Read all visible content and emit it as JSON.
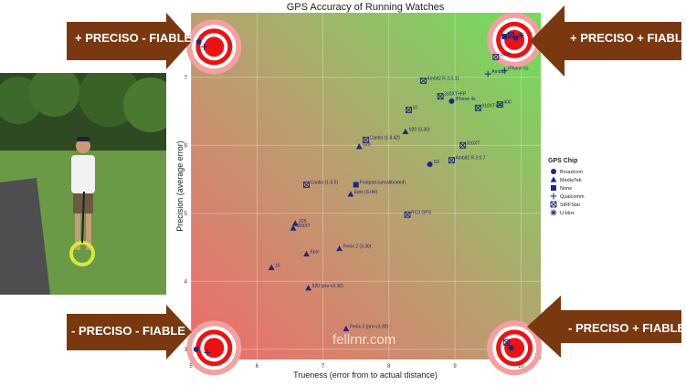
{
  "chart_data": {
    "type": "scatter",
    "title": "GPS Accuracy of Running Watches",
    "xlabel": "Trueness (error from to actual distance)",
    "ylabel": "Precision (average error)",
    "xlim": [
      5.0,
      10.3
    ],
    "ylim": [
      2.85,
      7.95
    ],
    "xticks": [
      "5",
      "6",
      "7",
      "8",
      "9",
      "10"
    ],
    "xtick_values": [
      5,
      6,
      7,
      8,
      9,
      10
    ],
    "yticks": [
      "3",
      "4",
      "5",
      "6",
      "7"
    ],
    "ytick_values": [
      3,
      4,
      5,
      6,
      7
    ],
    "legend": {
      "title": "GPS Chip",
      "items": [
        {
          "label": "Broadcom",
          "shape": "circle"
        },
        {
          "label": "MediaTek",
          "shape": "triangle"
        },
        {
          "label": "None",
          "shape": "square"
        },
        {
          "label": "Qualcomm",
          "shape": "plus"
        },
        {
          "label": "SiRFStar",
          "shape": "boxx"
        },
        {
          "label": "U-blox",
          "shape": "star"
        }
      ]
    },
    "points": [
      {
        "label": "Fenix 2 (pre-v3.30)",
        "x": 7.35,
        "y": 3.3,
        "chip": "triangle"
      },
      {
        "label": "520 (pre-v3.30)",
        "x": 6.78,
        "y": 3.9,
        "chip": "triangle"
      },
      {
        "label": "15",
        "x": 6.22,
        "y": 4.2,
        "chip": "triangle"
      },
      {
        "label": "Epix",
        "x": 6.75,
        "y": 4.4,
        "chip": "triangle"
      },
      {
        "label": "Fenix 2 (3.30)",
        "x": 7.25,
        "y": 4.48,
        "chip": "triangle"
      },
      {
        "label": "920XT",
        "x": 6.55,
        "y": 4.78,
        "chip": "triangle"
      },
      {
        "label": "225",
        "x": 6.58,
        "y": 4.85,
        "chip": "triangle"
      },
      {
        "label": "Epix (S+W)",
        "x": 7.42,
        "y": 5.28,
        "chip": "triangle"
      },
      {
        "label": "Cardio (1.8.5)",
        "x": 6.75,
        "y": 5.42,
        "chip": "boxx"
      },
      {
        "label": "Footpod (uncalibrated)",
        "x": 7.5,
        "y": 5.42,
        "chip": "square"
      },
      {
        "label": "RC3 GPS",
        "x": 8.28,
        "y": 4.98,
        "chip": "boxx"
      },
      {
        "label": "620",
        "x": 7.55,
        "y": 5.98,
        "chip": "triangle"
      },
      {
        "label": "Cardio (1.8.42)",
        "x": 7.65,
        "y": 6.08,
        "chip": "boxx"
      },
      {
        "label": "920 (3.30)",
        "x": 8.25,
        "y": 6.2,
        "chip": "triangle"
      },
      {
        "label": "10",
        "x": 8.3,
        "y": 6.52,
        "chip": "boxx"
      },
      {
        "label": "S3",
        "x": 8.62,
        "y": 5.72,
        "chip": "circle"
      },
      {
        "label": "Ambit2 R 2.0.7",
        "x": 8.95,
        "y": 5.78,
        "chip": "boxx"
      },
      {
        "label": "310XT",
        "x": 9.12,
        "y": 6.0,
        "chip": "boxx"
      },
      {
        "label": "Ambit2 R 2.0.11",
        "x": 8.52,
        "y": 6.95,
        "chip": "boxx"
      },
      {
        "label": "310XT+FP",
        "x": 8.78,
        "y": 6.72,
        "chip": "boxx"
      },
      {
        "label": "iPhone 4s",
        "x": 8.95,
        "y": 6.65,
        "chip": "circle"
      },
      {
        "label": "910XT+FP",
        "x": 9.35,
        "y": 6.55,
        "chip": "boxx"
      },
      {
        "label": "400",
        "x": 9.68,
        "y": 6.6,
        "chip": "boxx"
      },
      {
        "label": "Ambit3",
        "x": 9.5,
        "y": 7.05,
        "chip": "plus"
      },
      {
        "label": "iPhone 5s",
        "x": 9.75,
        "y": 7.1,
        "chip": "plus"
      },
      {
        "label": "V800",
        "x": 9.62,
        "y": 7.3,
        "chip": "boxx"
      },
      {
        "label": "",
        "x": 9.75,
        "y": 7.6,
        "chip": "square"
      },
      {
        "label": "",
        "x": 9.85,
        "y": 7.62,
        "chip": "boxx"
      },
      {
        "label": "",
        "x": 9.92,
        "y": 7.58,
        "chip": "circle"
      },
      {
        "label": "",
        "x": 10.0,
        "y": 7.62,
        "chip": "star"
      },
      {
        "label": "",
        "x": 5.12,
        "y": 7.52,
        "chip": "circle"
      },
      {
        "label": "",
        "x": 5.2,
        "y": 7.45,
        "chip": "plus"
      },
      {
        "label": "",
        "x": 5.08,
        "y": 3.0,
        "chip": "circle"
      },
      {
        "label": "",
        "x": 5.25,
        "y": 2.95,
        "chip": "plus"
      },
      {
        "label": "",
        "x": 9.85,
        "y": 3.02,
        "chip": "circle"
      },
      {
        "label": "",
        "x": 9.78,
        "y": 3.1,
        "chip": "boxx"
      }
    ],
    "watermark": "fellrnr.com",
    "annotations": [
      {
        "text": "+ PRECISO - FIABLE",
        "corner": "top-left"
      },
      {
        "text": "+ PRECISO + FIABLE",
        "corner": "top-right"
      },
      {
        "text": "- PRECISO - FIABLE",
        "corner": "bottom-left"
      },
      {
        "text": "- PRECISO + FIABLE",
        "corner": "bottom-right"
      }
    ]
  },
  "colors": {
    "arrow": "#7a3810",
    "target_red": "#ee1111",
    "marker": "#1a2a80",
    "grad_bottom_left": "#f06a6a",
    "grad_top_right": "#6ee05a"
  },
  "photo": {
    "icon": "runner-with-measuring-wheel-photo"
  }
}
